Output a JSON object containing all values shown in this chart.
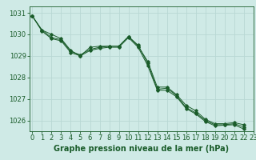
{
  "background_color": "#cfeae6",
  "grid_color": "#b8d8d4",
  "line_color": "#1a5c2a",
  "xlabel": "Graphe pression niveau de la mer (hPa)",
  "xlabel_fontsize": 7,
  "tick_fontsize": 6,
  "xlim": [
    -0.3,
    23
  ],
  "ylim": [
    1025.5,
    1031.3
  ],
  "yticks": [
    1026,
    1027,
    1028,
    1029,
    1030,
    1031
  ],
  "xticks": [
    0,
    1,
    2,
    3,
    4,
    5,
    6,
    7,
    8,
    9,
    10,
    11,
    12,
    13,
    14,
    15,
    16,
    17,
    18,
    19,
    20,
    21,
    22,
    23
  ],
  "series": [
    [
      1030.85,
      1030.2,
      1030.0,
      1029.8,
      1029.25,
      1029.0,
      1029.4,
      1029.45,
      1029.45,
      1029.45,
      1029.9,
      1029.45,
      1028.75,
      1027.55,
      1027.55,
      1027.2,
      1026.7,
      1026.45,
      1026.05,
      1025.85,
      1025.85,
      1025.9,
      1025.8
    ],
    [
      1030.85,
      1030.2,
      1029.85,
      1029.75,
      1029.2,
      1029.05,
      1029.3,
      1029.4,
      1029.45,
      1029.45,
      1029.9,
      1029.5,
      1028.65,
      1027.45,
      1027.5,
      1027.15,
      1026.6,
      1026.35,
      1026.0,
      1025.8,
      1025.8,
      1025.85,
      1025.7
    ],
    [
      1030.85,
      1030.15,
      1029.8,
      1029.7,
      1029.15,
      1029.0,
      1029.25,
      1029.35,
      1029.4,
      1029.4,
      1029.85,
      1029.4,
      1028.55,
      1027.4,
      1027.4,
      1027.1,
      1026.55,
      1026.3,
      1025.95,
      1025.75,
      1025.78,
      1025.8,
      1025.6
    ]
  ],
  "x_hours": [
    0,
    1,
    2,
    3,
    4,
    5,
    6,
    7,
    8,
    9,
    10,
    11,
    12,
    13,
    14,
    15,
    16,
    17,
    18,
    19,
    20,
    21,
    22
  ]
}
